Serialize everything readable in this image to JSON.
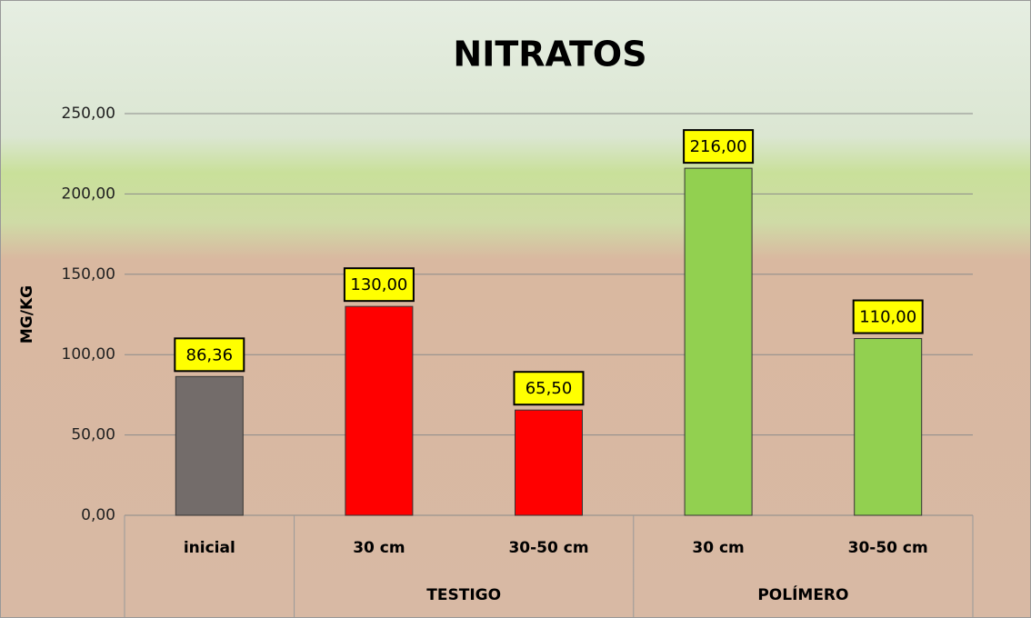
{
  "chart_data": {
    "type": "bar",
    "title": "NITRATOS",
    "y_label": "MG/KG",
    "categories": [
      "inicial",
      "30 cm",
      "30-50 cm",
      "30 cm",
      "30-50 cm"
    ],
    "groups": [
      {
        "name": null,
        "span": 1
      },
      {
        "name": "TESTIGO",
        "span": 2
      },
      {
        "name": "POLÍMERO",
        "span": 2
      }
    ],
    "values": [
      86.36,
      130,
      65.5,
      216,
      110
    ],
    "value_labels": [
      "86,36",
      "130,00",
      "65,50",
      "216,00",
      "110,00"
    ],
    "colors": [
      "#736c6a",
      "#ff0000",
      "#ff0000",
      "#92d050",
      "#92d050"
    ],
    "ylim": [
      0,
      250
    ],
    "yticks": [
      {
        "value": 0,
        "label": "0,00"
      },
      {
        "value": 50,
        "label": "50,00"
      },
      {
        "value": 100,
        "label": "100,00"
      },
      {
        "value": 150,
        "label": "150,00"
      },
      {
        "value": 200,
        "label": "200,00"
      },
      {
        "value": 250,
        "label": "250,00"
      }
    ],
    "grid": true
  }
}
